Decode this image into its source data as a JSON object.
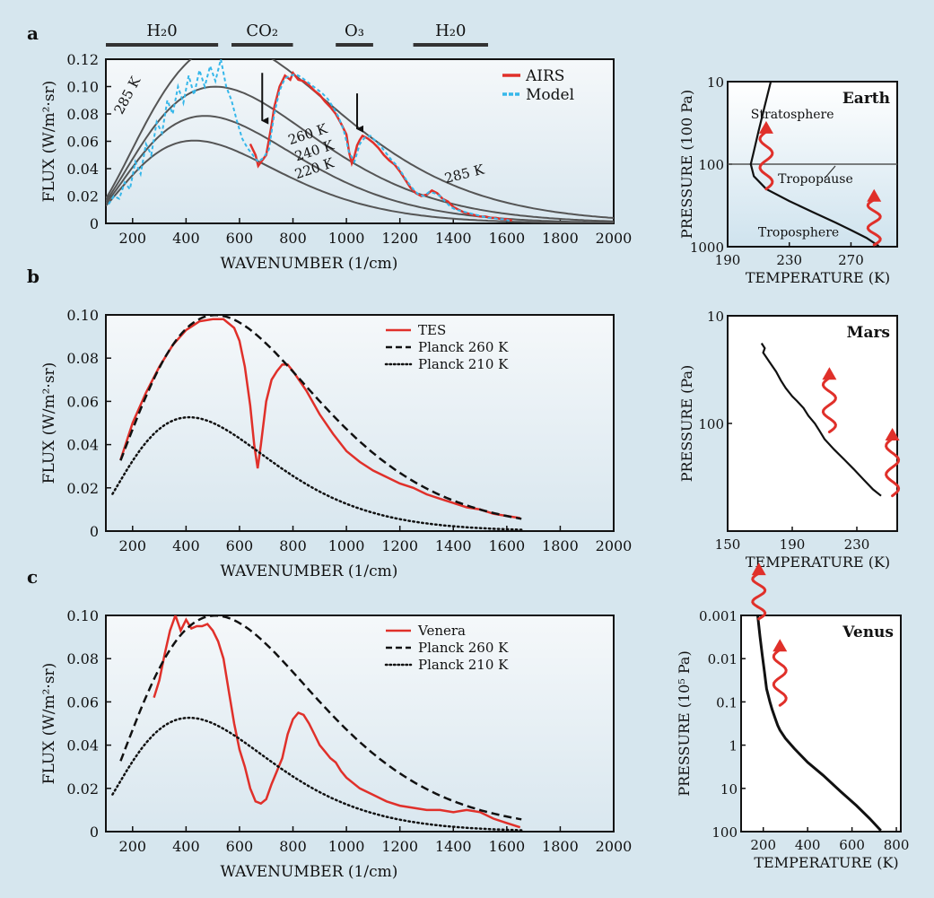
{
  "figure": {
    "background_color": "#d6e6ee",
    "panel_gradient": [
      "#f3f6f8",
      "#dbe8ef"
    ]
  },
  "colors": {
    "red": "#e0302a",
    "blue": "#35b7ea",
    "gray": "#555555",
    "black": "#111111"
  },
  "chart_data": [
    {
      "id": "a",
      "panel_label": "a",
      "type": "line",
      "xlabel": "WAVENUMBER (1/cm)",
      "ylabel": "FLUX (W/m²·sr)",
      "xlim": [
        100,
        2000
      ],
      "ylim": [
        0,
        0.12
      ],
      "xticks": [
        200,
        400,
        600,
        800,
        1000,
        1200,
        1400,
        1600,
        1800,
        2000
      ],
      "yticks": [
        0,
        0.02,
        0.04,
        0.06,
        0.08,
        0.1,
        0.12
      ],
      "ytick_labels": [
        "0",
        "0.02",
        "0.04",
        "0.06",
        "0.08",
        "0.10",
        "0.12"
      ],
      "bands": [
        {
          "label": "H₂0",
          "x": [
            100,
            520
          ]
        },
        {
          "label": "CO₂",
          "x": [
            570,
            800
          ]
        },
        {
          "label": "O₃",
          "x": [
            960,
            1100
          ]
        },
        {
          "label": "H₂0",
          "x": [
            1250,
            1530
          ]
        }
      ],
      "legend": {
        "position": "top-right",
        "entries": [
          {
            "name": "AIRS",
            "color": "#e0302a"
          },
          {
            "name": "Model",
            "color": "#35b7ea"
          }
        ]
      },
      "planck_curves": [
        {
          "name": "285 K",
          "T": 285,
          "label": "285 K",
          "label_at": [
            195,
            0.092
          ],
          "label2": "285 K",
          "label2_at": [
            1445,
            0.033
          ]
        },
        {
          "name": "260 K",
          "T": 260,
          "label": "260 K",
          "label_at": [
            860,
            0.062
          ]
        },
        {
          "name": "240 K",
          "T": 240,
          "label": "240 K",
          "label_at": [
            885,
            0.05
          ]
        },
        {
          "name": "220 K",
          "T": 220,
          "label": "220 K",
          "label_at": [
            885,
            0.037
          ]
        }
      ],
      "arrows": [
        {
          "x": 685,
          "y_from": 0.11,
          "y_to": 0.075
        },
        {
          "x": 1040,
          "y_from": 0.095,
          "y_to": 0.069
        }
      ],
      "series": [
        {
          "name": "AIRS",
          "color": "#e0302a",
          "style": "solid",
          "x": [
            640,
            660,
            670,
            685,
            700,
            720,
            730,
            750,
            770,
            790,
            800,
            820,
            840,
            860,
            880,
            900,
            920,
            940,
            960,
            980,
            1000,
            1010,
            1020,
            1030,
            1040,
            1050,
            1060,
            1070,
            1080,
            1100,
            1120,
            1140,
            1160,
            1180,
            1200,
            1220,
            1240,
            1260,
            1280,
            1300,
            1320,
            1340,
            1360,
            1380,
            1400,
            1420,
            1440,
            1460,
            1480,
            1500,
            1520,
            1540,
            1560,
            1580,
            1600,
            1620
          ],
          "y": [
            0.058,
            0.05,
            0.042,
            0.046,
            0.05,
            0.072,
            0.085,
            0.1,
            0.108,
            0.105,
            0.11,
            0.105,
            0.104,
            0.101,
            0.097,
            0.094,
            0.089,
            0.085,
            0.08,
            0.073,
            0.065,
            0.052,
            0.044,
            0.049,
            0.057,
            0.061,
            0.064,
            0.063,
            0.062,
            0.059,
            0.055,
            0.05,
            0.046,
            0.043,
            0.038,
            0.032,
            0.026,
            0.022,
            0.02,
            0.021,
            0.024,
            0.022,
            0.018,
            0.016,
            0.012,
            0.01,
            0.008,
            0.007,
            0.006,
            0.005,
            0.005,
            0.004,
            0.004,
            0.003,
            0.003,
            0.002
          ]
        },
        {
          "name": "Model",
          "color": "#35b7ea",
          "style": "dashed",
          "x": [
            110,
            130,
            150,
            170,
            190,
            210,
            230,
            250,
            270,
            290,
            310,
            330,
            350,
            370,
            390,
            410,
            430,
            450,
            470,
            490,
            510,
            530,
            550,
            570,
            590,
            610,
            630,
            650,
            670,
            690,
            710,
            730,
            750,
            770,
            790,
            810,
            830,
            850,
            870,
            890,
            910,
            930,
            950,
            970,
            990,
            1010,
            1030,
            1050,
            1070,
            1090,
            1110,
            1130,
            1150,
            1170,
            1190,
            1210,
            1230,
            1250,
            1270,
            1290,
            1310,
            1330,
            1350,
            1370,
            1390,
            1410,
            1430,
            1450,
            1470,
            1490,
            1510,
            1530,
            1550,
            1570,
            1590,
            1610
          ],
          "y": [
            0.014,
            0.02,
            0.018,
            0.03,
            0.025,
            0.045,
            0.036,
            0.058,
            0.05,
            0.074,
            0.066,
            0.09,
            0.08,
            0.1,
            0.088,
            0.108,
            0.094,
            0.112,
            0.1,
            0.115,
            0.104,
            0.12,
            0.1,
            0.09,
            0.075,
            0.062,
            0.055,
            0.05,
            0.045,
            0.048,
            0.054,
            0.08,
            0.097,
            0.106,
            0.108,
            0.109,
            0.107,
            0.104,
            0.101,
            0.098,
            0.095,
            0.091,
            0.085,
            0.078,
            0.068,
            0.052,
            0.045,
            0.058,
            0.063,
            0.064,
            0.06,
            0.056,
            0.051,
            0.046,
            0.042,
            0.036,
            0.03,
            0.025,
            0.021,
            0.02,
            0.023,
            0.022,
            0.02,
            0.016,
            0.012,
            0.01,
            0.009,
            0.008,
            0.007,
            0.006,
            0.005,
            0.004,
            0.004,
            0.003,
            0.003,
            0.002
          ]
        }
      ]
    },
    {
      "id": "b",
      "panel_label": "b",
      "type": "line",
      "xlabel": "WAVENUMBER (1/cm)",
      "ylabel": "FLUX (W/m²·sr)",
      "xlim": [
        100,
        2000
      ],
      "ylim": [
        0,
        0.1
      ],
      "xticks": [
        200,
        400,
        600,
        800,
        1000,
        1200,
        1400,
        1600,
        1800,
        2000
      ],
      "yticks": [
        0,
        0.02,
        0.04,
        0.06,
        0.08,
        0.1
      ],
      "ytick_labels": [
        "0",
        "0.02",
        "0.04",
        "0.06",
        "0.08",
        "0.10"
      ],
      "legend": {
        "position": "top-right",
        "entries": [
          {
            "name": "TES",
            "color": "#e0302a",
            "style": "solid"
          },
          {
            "name": "Planck 260 K",
            "color": "#111111",
            "style": "dashed"
          },
          {
            "name": "Planck 210 K",
            "color": "#111111",
            "style": "dotted"
          }
        ]
      },
      "series": [
        {
          "name": "TES",
          "color": "#e0302a",
          "style": "solid",
          "x": [
            155,
            200,
            250,
            300,
            350,
            400,
            450,
            500,
            540,
            580,
            600,
            620,
            640,
            655,
            668,
            680,
            700,
            720,
            740,
            760,
            780,
            800,
            850,
            900,
            950,
            1000,
            1050,
            1100,
            1150,
            1200,
            1250,
            1300,
            1350,
            1400,
            1450,
            1500,
            1550,
            1600,
            1650
          ],
          "y": [
            0.033,
            0.05,
            0.064,
            0.076,
            0.086,
            0.093,
            0.097,
            0.098,
            0.098,
            0.094,
            0.088,
            0.076,
            0.058,
            0.04,
            0.029,
            0.04,
            0.06,
            0.07,
            0.074,
            0.077,
            0.077,
            0.074,
            0.065,
            0.054,
            0.045,
            0.037,
            0.032,
            0.028,
            0.025,
            0.022,
            0.02,
            0.017,
            0.015,
            0.013,
            0.011,
            0.01,
            0.008,
            0.007,
            0.006
          ]
        },
        {
          "name": "Planck 260 K",
          "color": "#111111",
          "style": "dashed",
          "planck_T": 260,
          "x_range": [
            155,
            1660
          ]
        },
        {
          "name": "Planck 210 K",
          "color": "#111111",
          "style": "dotted",
          "planck_T": 210,
          "x_range": [
            125,
            1660
          ]
        }
      ]
    },
    {
      "id": "c",
      "panel_label": "c",
      "type": "line",
      "xlabel": "WAVENUMBER (1/cm)",
      "ylabel": "FLUX (W/m²·sr)",
      "xlim": [
        100,
        2000
      ],
      "ylim": [
        0,
        0.1
      ],
      "xticks": [
        200,
        400,
        600,
        800,
        1000,
        1200,
        1400,
        1600,
        1800,
        2000
      ],
      "yticks": [
        0,
        0.02,
        0.04,
        0.06,
        0.08,
        0.1
      ],
      "ytick_labels": [
        "0",
        "0.02",
        "0.04",
        "0.06",
        "0.08",
        "0.10"
      ],
      "legend": {
        "position": "top-right",
        "entries": [
          {
            "name": "Venera",
            "color": "#e0302a",
            "style": "solid"
          },
          {
            "name": "Planck 260 K",
            "color": "#111111",
            "style": "dashed"
          },
          {
            "name": "Planck 210 K",
            "color": "#111111",
            "style": "dotted"
          }
        ]
      },
      "series": [
        {
          "name": "Venera",
          "color": "#e0302a",
          "style": "solid",
          "x": [
            280,
            300,
            320,
            340,
            360,
            380,
            400,
            420,
            440,
            460,
            480,
            500,
            520,
            540,
            560,
            580,
            600,
            620,
            640,
            660,
            680,
            700,
            720,
            740,
            760,
            780,
            800,
            820,
            840,
            860,
            880,
            900,
            920,
            940,
            960,
            980,
            1000,
            1050,
            1100,
            1150,
            1200,
            1250,
            1300,
            1350,
            1400,
            1450,
            1500,
            1550,
            1600,
            1650
          ],
          "y": [
            0.062,
            0.07,
            0.082,
            0.093,
            0.1,
            0.093,
            0.098,
            0.094,
            0.095,
            0.095,
            0.096,
            0.093,
            0.088,
            0.08,
            0.065,
            0.05,
            0.038,
            0.03,
            0.02,
            0.014,
            0.013,
            0.015,
            0.022,
            0.028,
            0.034,
            0.045,
            0.052,
            0.055,
            0.054,
            0.05,
            0.045,
            0.04,
            0.037,
            0.034,
            0.032,
            0.028,
            0.025,
            0.02,
            0.017,
            0.014,
            0.012,
            0.011,
            0.01,
            0.01,
            0.009,
            0.01,
            0.009,
            0.006,
            0.004,
            0.002
          ]
        },
        {
          "name": "Planck 260 K",
          "color": "#111111",
          "style": "dashed",
          "planck_T": 260,
          "x_range": [
            155,
            1660
          ]
        },
        {
          "name": "Planck 210 K",
          "color": "#111111",
          "style": "dotted",
          "planck_T": 210,
          "x_range": [
            125,
            1660
          ]
        }
      ]
    },
    {
      "id": "earth",
      "type": "line",
      "title": "Earth",
      "xlabel": "TEMPERATURE (K)",
      "ylabel": "PRESSURE (100 Pa)",
      "xlim": [
        190,
        300
      ],
      "ylim": [
        10,
        1000
      ],
      "yscale": "log",
      "xticks": [
        190,
        230,
        270
      ],
      "yticks": [
        10,
        100,
        1000
      ],
      "annotations": [
        {
          "text": "Stratosphere",
          "x": 232,
          "y": 28,
          "color": "#111111"
        },
        {
          "text": "Tropopause",
          "x": 247,
          "y": 170,
          "color": "#e0302a"
        },
        {
          "text": "Troposphere",
          "x": 236,
          "y": 750,
          "color": "#111111"
        }
      ],
      "tropopause_pressure": 100,
      "emission_arrows": [
        {
          "x": 215,
          "y_top": 30,
          "y_bottom": 200
        },
        {
          "x": 285,
          "y_top": 200,
          "y_bottom": 950
        }
      ],
      "series": [
        {
          "name": "profile",
          "x": [
            218,
            214,
            210,
            207,
            205,
            207,
            215,
            230,
            245,
            260,
            270,
            280,
            288
          ],
          "y": [
            10,
            20,
            40,
            70,
            100,
            140,
            200,
            280,
            380,
            510,
            630,
            780,
            980
          ]
        }
      ]
    },
    {
      "id": "mars",
      "type": "line",
      "title": "Mars",
      "xlabel": "TEMPERATURE (K)",
      "ylabel": "PRESSURE (Pa)",
      "xlim": [
        150,
        255
      ],
      "ylim": [
        10,
        1000
      ],
      "yscale": "log",
      "xticks": [
        150,
        190,
        230
      ],
      "yticks": [
        10,
        100
      ],
      "emission_arrows": [
        {
          "x": 213,
          "y_top": 30,
          "y_bottom": 120
        },
        {
          "x": 252,
          "y_top": 110,
          "y_bottom": 470
        }
      ],
      "series": [
        {
          "name": "profile",
          "x": [
            171,
            173,
            172,
            176,
            180,
            183,
            186,
            190,
            193,
            197,
            200,
            204,
            207,
            210,
            216,
            222,
            228,
            234,
            240,
            245
          ],
          "y": [
            18,
            20,
            22,
            27,
            33,
            40,
            47,
            56,
            62,
            72,
            85,
            100,
            118,
            140,
            175,
            215,
            265,
            330,
            410,
            470
          ]
        }
      ]
    },
    {
      "id": "venus",
      "type": "line",
      "title": "Venus",
      "xlabel": "TEMPERATURE (K)",
      "ylabel": "PRESSURE (10⁵ Pa)",
      "xlim": [
        100,
        820
      ],
      "ylim": [
        0.001,
        100
      ],
      "yscale": "log",
      "xticks": [
        200,
        400,
        600,
        800
      ],
      "yticks": [
        0.001,
        0.01,
        0.1,
        1,
        10,
        100
      ],
      "ytick_labels": [
        "0.001",
        "0.01",
        "0.1",
        "1",
        "10",
        "100"
      ],
      "emission_arrows": [
        {
          "x": 180,
          "y_top": 6e-05,
          "y_bottom": 0.0012
        },
        {
          "x": 275,
          "y_top": 0.0035,
          "y_bottom": 0.12
        }
      ],
      "series": [
        {
          "name": "profile",
          "x": [
            175,
            185,
            195,
            205,
            215,
            230,
            240,
            255,
            265,
            275,
            300,
            340,
            400,
            470,
            550,
            620,
            680,
            730
          ],
          "y": [
            0.001,
            0.003,
            0.008,
            0.02,
            0.05,
            0.1,
            0.15,
            0.25,
            0.35,
            0.45,
            0.7,
            1.2,
            2.5,
            5,
            12,
            25,
            50,
            95
          ]
        }
      ]
    }
  ]
}
